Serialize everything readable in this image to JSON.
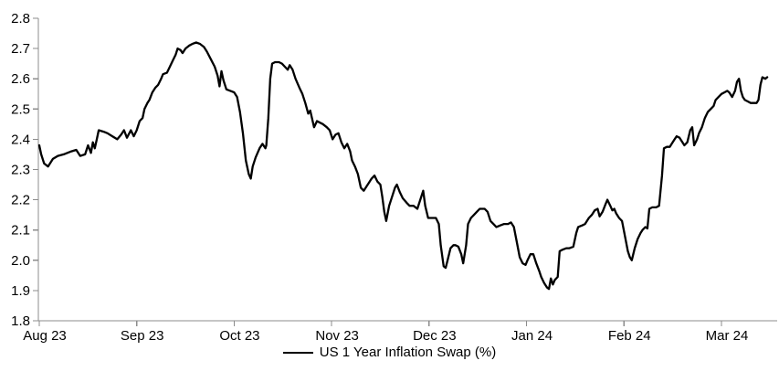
{
  "chart_data": {
    "type": "line",
    "title": "",
    "grid": false,
    "legend_position": "bottom-center",
    "axis_color": "#8c8c8c",
    "text_color": "#000000",
    "line_color": "#000000",
    "x_axis": {
      "unit": "month",
      "tick_labels": [
        "Aug 23",
        "Sep 23",
        "Oct 23",
        "Nov 23",
        "Dec 23",
        "Jan 24",
        "Feb 24",
        "Mar 24"
      ],
      "tick_values": [
        0,
        1,
        2,
        3,
        4,
        5,
        6,
        7
      ],
      "range": [
        0,
        7.57
      ]
    },
    "y_axis": {
      "range": [
        1.8,
        2.8
      ],
      "tick_step": 0.1,
      "tick_labels": [
        "1.8",
        "1.9",
        "2.0",
        "2.1",
        "2.2",
        "2.3",
        "2.4",
        "2.5",
        "2.6",
        "2.7",
        "2.8"
      ]
    },
    "series": [
      {
        "name": "US 1 Year Inflation Swap (%)",
        "color": "#000000",
        "points": [
          [
            0.0,
            2.38
          ],
          [
            0.02,
            2.35
          ],
          [
            0.05,
            2.32
          ],
          [
            0.09,
            2.31
          ],
          [
            0.14,
            2.335
          ],
          [
            0.19,
            2.345
          ],
          [
            0.25,
            2.35
          ],
          [
            0.33,
            2.36
          ],
          [
            0.38,
            2.365
          ],
          [
            0.42,
            2.345
          ],
          [
            0.47,
            2.35
          ],
          [
            0.5,
            2.38
          ],
          [
            0.53,
            2.355
          ],
          [
            0.55,
            2.39
          ],
          [
            0.57,
            2.37
          ],
          [
            0.59,
            2.4
          ],
          [
            0.61,
            2.43
          ],
          [
            0.66,
            2.425
          ],
          [
            0.7,
            2.42
          ],
          [
            0.75,
            2.41
          ],
          [
            0.8,
            2.4
          ],
          [
            0.84,
            2.415
          ],
          [
            0.87,
            2.43
          ],
          [
            0.9,
            2.405
          ],
          [
            0.94,
            2.43
          ],
          [
            0.97,
            2.41
          ],
          [
            1.0,
            2.43
          ],
          [
            1.03,
            2.46
          ],
          [
            1.06,
            2.47
          ],
          [
            1.08,
            2.5
          ],
          [
            1.11,
            2.52
          ],
          [
            1.13,
            2.53
          ],
          [
            1.16,
            2.555
          ],
          [
            1.19,
            2.57
          ],
          [
            1.22,
            2.58
          ],
          [
            1.25,
            2.6
          ],
          [
            1.27,
            2.615
          ],
          [
            1.31,
            2.62
          ],
          [
            1.34,
            2.64
          ],
          [
            1.37,
            2.66
          ],
          [
            1.4,
            2.68
          ],
          [
            1.42,
            2.7
          ],
          [
            1.45,
            2.695
          ],
          [
            1.47,
            2.685
          ],
          [
            1.5,
            2.7
          ],
          [
            1.54,
            2.71
          ],
          [
            1.57,
            2.715
          ],
          [
            1.61,
            2.72
          ],
          [
            1.65,
            2.715
          ],
          [
            1.69,
            2.705
          ],
          [
            1.72,
            2.69
          ],
          [
            1.76,
            2.665
          ],
          [
            1.8,
            2.64
          ],
          [
            1.83,
            2.61
          ],
          [
            1.85,
            2.575
          ],
          [
            1.87,
            2.625
          ],
          [
            1.89,
            2.595
          ],
          [
            1.92,
            2.565
          ],
          [
            1.96,
            2.56
          ],
          [
            2.0,
            2.555
          ],
          [
            2.03,
            2.54
          ],
          [
            2.06,
            2.49
          ],
          [
            2.09,
            2.42
          ],
          [
            2.12,
            2.33
          ],
          [
            2.15,
            2.285
          ],
          [
            2.17,
            2.27
          ],
          [
            2.19,
            2.31
          ],
          [
            2.22,
            2.34
          ],
          [
            2.26,
            2.37
          ],
          [
            2.29,
            2.385
          ],
          [
            2.32,
            2.37
          ],
          [
            2.33,
            2.38
          ],
          [
            2.35,
            2.47
          ],
          [
            2.37,
            2.6
          ],
          [
            2.39,
            2.65
          ],
          [
            2.42,
            2.655
          ],
          [
            2.46,
            2.655
          ],
          [
            2.49,
            2.65
          ],
          [
            2.52,
            2.64
          ],
          [
            2.55,
            2.63
          ],
          [
            2.57,
            2.645
          ],
          [
            2.6,
            2.63
          ],
          [
            2.63,
            2.6
          ],
          [
            2.67,
            2.57
          ],
          [
            2.7,
            2.55
          ],
          [
            2.73,
            2.52
          ],
          [
            2.76,
            2.485
          ],
          [
            2.78,
            2.495
          ],
          [
            2.82,
            2.44
          ],
          [
            2.85,
            2.46
          ],
          [
            2.88,
            2.455
          ],
          [
            2.91,
            2.45
          ],
          [
            2.95,
            2.44
          ],
          [
            2.98,
            2.43
          ],
          [
            3.01,
            2.4
          ],
          [
            3.04,
            2.415
          ],
          [
            3.07,
            2.42
          ],
          [
            3.1,
            2.39
          ],
          [
            3.13,
            2.37
          ],
          [
            3.16,
            2.385
          ],
          [
            3.19,
            2.36
          ],
          [
            3.21,
            2.33
          ],
          [
            3.24,
            2.31
          ],
          [
            3.27,
            2.285
          ],
          [
            3.3,
            2.24
          ],
          [
            3.33,
            2.23
          ],
          [
            3.36,
            2.245
          ],
          [
            3.38,
            2.255
          ],
          [
            3.41,
            2.27
          ],
          [
            3.44,
            2.28
          ],
          [
            3.47,
            2.26
          ],
          [
            3.5,
            2.25
          ],
          [
            3.52,
            2.21
          ],
          [
            3.54,
            2.16
          ],
          [
            3.56,
            2.13
          ],
          [
            3.59,
            2.18
          ],
          [
            3.62,
            2.21
          ],
          [
            3.65,
            2.24
          ],
          [
            3.67,
            2.25
          ],
          [
            3.7,
            2.225
          ],
          [
            3.73,
            2.205
          ],
          [
            3.77,
            2.19
          ],
          [
            3.8,
            2.18
          ],
          [
            3.84,
            2.18
          ],
          [
            3.88,
            2.17
          ],
          [
            3.91,
            2.2
          ],
          [
            3.94,
            2.23
          ],
          [
            3.96,
            2.18
          ],
          [
            3.99,
            2.14
          ],
          [
            4.03,
            2.14
          ],
          [
            4.07,
            2.14
          ],
          [
            4.1,
            2.12
          ],
          [
            4.12,
            2.05
          ],
          [
            4.15,
            1.98
          ],
          [
            4.17,
            1.975
          ],
          [
            4.19,
            2.0
          ],
          [
            4.22,
            2.04
          ],
          [
            4.25,
            2.05
          ],
          [
            4.27,
            2.05
          ],
          [
            4.3,
            2.045
          ],
          [
            4.33,
            2.02
          ],
          [
            4.35,
            1.99
          ],
          [
            4.38,
            2.05
          ],
          [
            4.4,
            2.12
          ],
          [
            4.43,
            2.14
          ],
          [
            4.46,
            2.15
          ],
          [
            4.49,
            2.16
          ],
          [
            4.52,
            2.17
          ],
          [
            4.55,
            2.17
          ],
          [
            4.57,
            2.17
          ],
          [
            4.6,
            2.16
          ],
          [
            4.63,
            2.13
          ],
          [
            4.66,
            2.12
          ],
          [
            4.69,
            2.11
          ],
          [
            4.73,
            2.115
          ],
          [
            4.77,
            2.12
          ],
          [
            4.81,
            2.12
          ],
          [
            4.84,
            2.125
          ],
          [
            4.87,
            2.11
          ],
          [
            4.9,
            2.06
          ],
          [
            4.93,
            2.01
          ],
          [
            4.96,
            1.99
          ],
          [
            4.99,
            1.985
          ],
          [
            5.01,
            2.0
          ],
          [
            5.04,
            2.02
          ],
          [
            5.07,
            2.02
          ],
          [
            5.1,
            1.99
          ],
          [
            5.13,
            1.965
          ],
          [
            5.15,
            1.945
          ],
          [
            5.18,
            1.925
          ],
          [
            5.21,
            1.91
          ],
          [
            5.23,
            1.905
          ],
          [
            5.25,
            1.94
          ],
          [
            5.27,
            1.92
          ],
          [
            5.29,
            1.935
          ],
          [
            5.32,
            1.945
          ],
          [
            5.34,
            2.03
          ],
          [
            5.37,
            2.035
          ],
          [
            5.41,
            2.04
          ],
          [
            5.44,
            2.04
          ],
          [
            5.48,
            2.045
          ],
          [
            5.51,
            2.09
          ],
          [
            5.53,
            2.11
          ],
          [
            5.57,
            2.115
          ],
          [
            5.6,
            2.12
          ],
          [
            5.64,
            2.14
          ],
          [
            5.67,
            2.15
          ],
          [
            5.7,
            2.165
          ],
          [
            5.73,
            2.17
          ],
          [
            5.75,
            2.145
          ],
          [
            5.78,
            2.16
          ],
          [
            5.81,
            2.185
          ],
          [
            5.83,
            2.2
          ],
          [
            5.86,
            2.18
          ],
          [
            5.88,
            2.165
          ],
          [
            5.9,
            2.17
          ],
          [
            5.92,
            2.155
          ],
          [
            5.95,
            2.14
          ],
          [
            5.98,
            2.13
          ],
          [
            6.01,
            2.08
          ],
          [
            6.04,
            2.03
          ],
          [
            6.06,
            2.01
          ],
          [
            6.08,
            2.0
          ],
          [
            6.11,
            2.04
          ],
          [
            6.14,
            2.07
          ],
          [
            6.17,
            2.09
          ],
          [
            6.19,
            2.1
          ],
          [
            6.22,
            2.11
          ],
          [
            6.24,
            2.105
          ],
          [
            6.26,
            2.17
          ],
          [
            6.29,
            2.175
          ],
          [
            6.33,
            2.175
          ],
          [
            6.36,
            2.18
          ],
          [
            6.39,
            2.28
          ],
          [
            6.41,
            2.37
          ],
          [
            6.44,
            2.375
          ],
          [
            6.47,
            2.375
          ],
          [
            6.49,
            2.385
          ],
          [
            6.52,
            2.4
          ],
          [
            6.54,
            2.41
          ],
          [
            6.57,
            2.405
          ],
          [
            6.6,
            2.39
          ],
          [
            6.62,
            2.38
          ],
          [
            6.65,
            2.39
          ],
          [
            6.68,
            2.43
          ],
          [
            6.7,
            2.44
          ],
          [
            6.72,
            2.38
          ],
          [
            6.75,
            2.4
          ],
          [
            6.77,
            2.42
          ],
          [
            6.8,
            2.44
          ],
          [
            6.83,
            2.47
          ],
          [
            6.86,
            2.49
          ],
          [
            6.89,
            2.5
          ],
          [
            6.92,
            2.51
          ],
          [
            6.94,
            2.53
          ],
          [
            6.97,
            2.54
          ],
          [
            7.0,
            2.55
          ],
          [
            7.03,
            2.555
          ],
          [
            7.06,
            2.56
          ],
          [
            7.08,
            2.555
          ],
          [
            7.11,
            2.54
          ],
          [
            7.14,
            2.56
          ],
          [
            7.16,
            2.59
          ],
          [
            7.18,
            2.6
          ],
          [
            7.2,
            2.56
          ],
          [
            7.22,
            2.54
          ],
          [
            7.24,
            2.53
          ],
          [
            7.27,
            2.525
          ],
          [
            7.3,
            2.52
          ],
          [
            7.33,
            2.52
          ],
          [
            7.36,
            2.52
          ],
          [
            7.38,
            2.53
          ],
          [
            7.4,
            2.58
          ],
          [
            7.42,
            2.605
          ],
          [
            7.45,
            2.6
          ],
          [
            7.47,
            2.605
          ]
        ]
      }
    ]
  }
}
